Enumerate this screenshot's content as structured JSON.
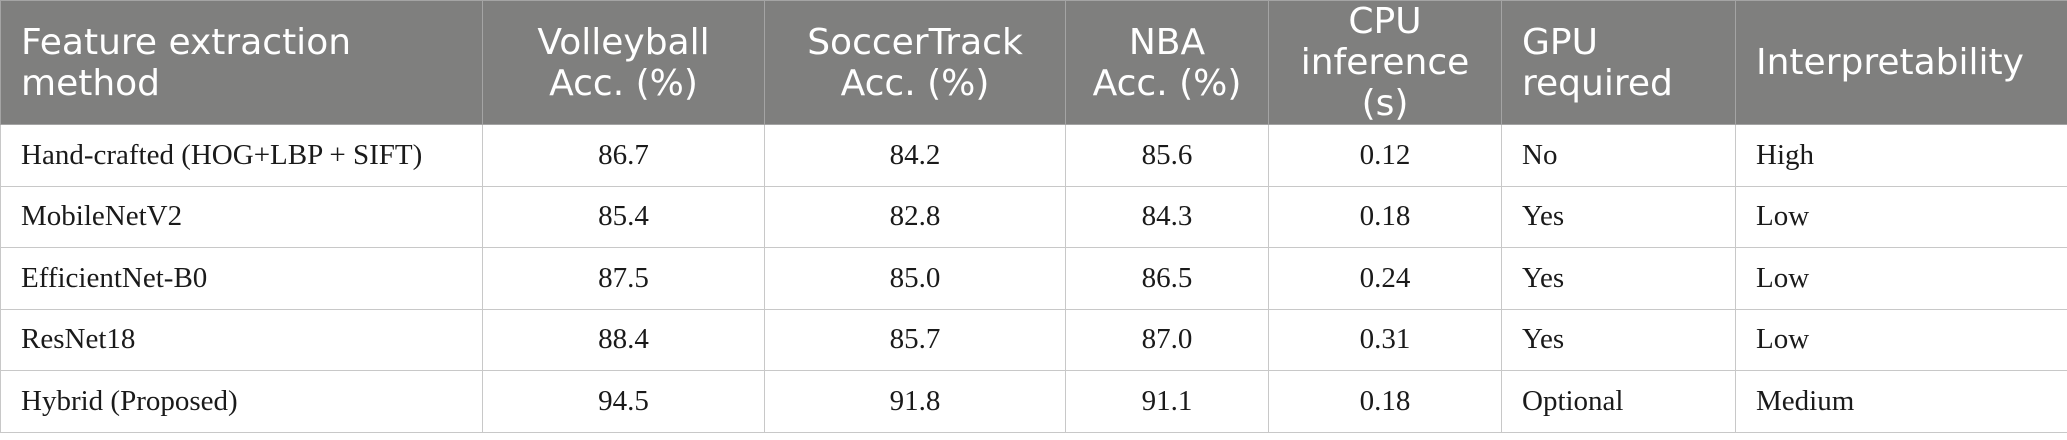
{
  "table": {
    "headers": [
      "Feature extraction method",
      "Volleyball Acc. (%)",
      "SoccerTrack Acc. (%)",
      "NBA Acc. (%)",
      "CPU inference (s)",
      "GPU required",
      "Interpretability"
    ],
    "rows": [
      [
        "Hand-crafted (HOG+LBP + SIFT)",
        "86.7",
        "84.2",
        "85.6",
        "0.12",
        "No",
        "High"
      ],
      [
        "MobileNetV2",
        "85.4",
        "82.8",
        "84.3",
        "0.18",
        "Yes",
        "Low"
      ],
      [
        "EfficientNet-B0",
        "87.5",
        "85.0",
        "86.5",
        "0.24",
        "Yes",
        "Low"
      ],
      [
        "ResNet18",
        "88.4",
        "85.7",
        "87.0",
        "0.31",
        "Yes",
        "Low"
      ],
      [
        "Hybrid (Proposed)",
        "94.5",
        "91.8",
        "91.1",
        "0.18",
        "Optional",
        "Medium"
      ]
    ]
  },
  "colors": {
    "header_background": "#7f7f7e",
    "header_text": "#ffffff",
    "grid": "#c8c8c8",
    "body_text": "#1a1a1a"
  }
}
